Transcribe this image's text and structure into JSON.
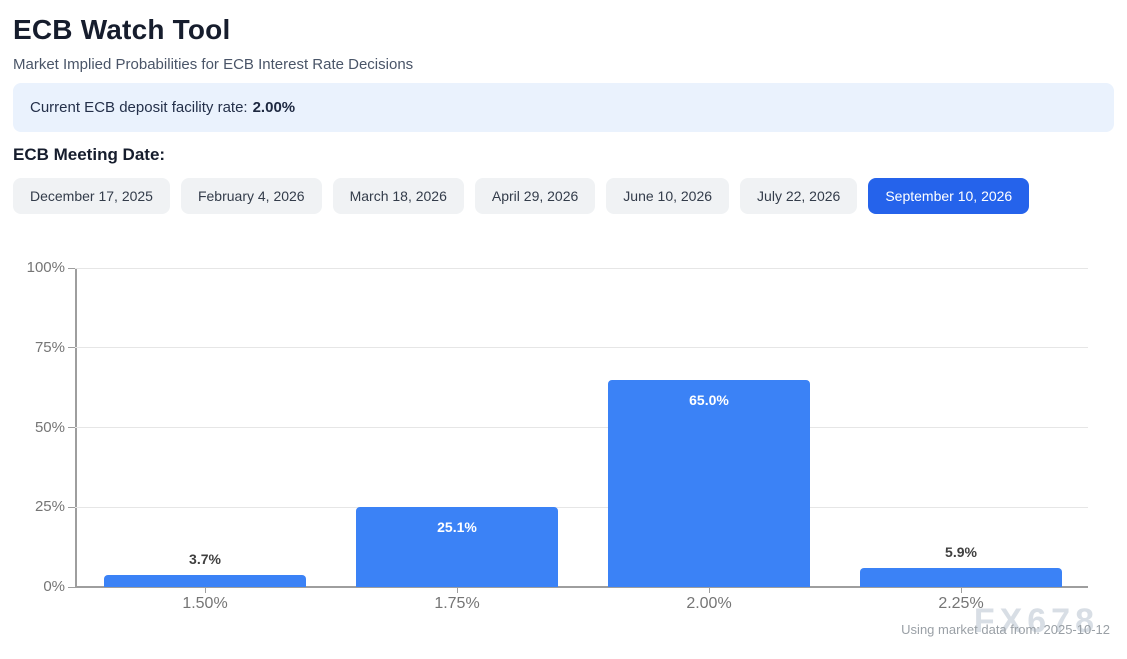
{
  "header": {
    "title": "ECB Watch Tool",
    "subtitle": "Market Implied Probabilities for ECB Interest Rate Decisions"
  },
  "rate_banner": {
    "label": "Current ECB deposit facility rate:",
    "value": "2.00%"
  },
  "meeting_date_section": {
    "label": "ECB Meeting Date:",
    "selected_index": 6,
    "dates": [
      {
        "label": "December 17, 2025"
      },
      {
        "label": "February 4, 2026"
      },
      {
        "label": "March 18, 2026"
      },
      {
        "label": "April 29, 2026"
      },
      {
        "label": "June 10, 2026"
      },
      {
        "label": "July 22, 2026"
      },
      {
        "label": "September 10, 2026"
      }
    ]
  },
  "chart_data": {
    "type": "bar",
    "title": "",
    "xlabel": "",
    "ylabel": "",
    "categories": [
      "1.50%",
      "1.75%",
      "2.00%",
      "2.25%"
    ],
    "values": [
      3.7,
      25.1,
      65.0,
      5.9
    ],
    "bar_labels": [
      "3.7%",
      "25.1%",
      "65.0%",
      "5.9%"
    ],
    "y_ticks": [
      {
        "value": 0,
        "label": "0%"
      },
      {
        "value": 25,
        "label": "25%"
      },
      {
        "value": 50,
        "label": "50%"
      },
      {
        "value": 75,
        "label": "75%"
      },
      {
        "value": 100,
        "label": "100%"
      }
    ],
    "ylim": [
      0,
      100
    ],
    "grid": true,
    "legend": "none",
    "bar_color": "#3b82f6"
  },
  "footer": {
    "source_note": "Using market data from: 2025-10-12",
    "watermark": "FX678"
  },
  "colors": {
    "accent_blue": "#2563eb",
    "bar_blue": "#3b82f6",
    "banner_bg": "#eaf2fd",
    "gridline": "#e6e6e6",
    "axis": "#9e9e9e"
  }
}
